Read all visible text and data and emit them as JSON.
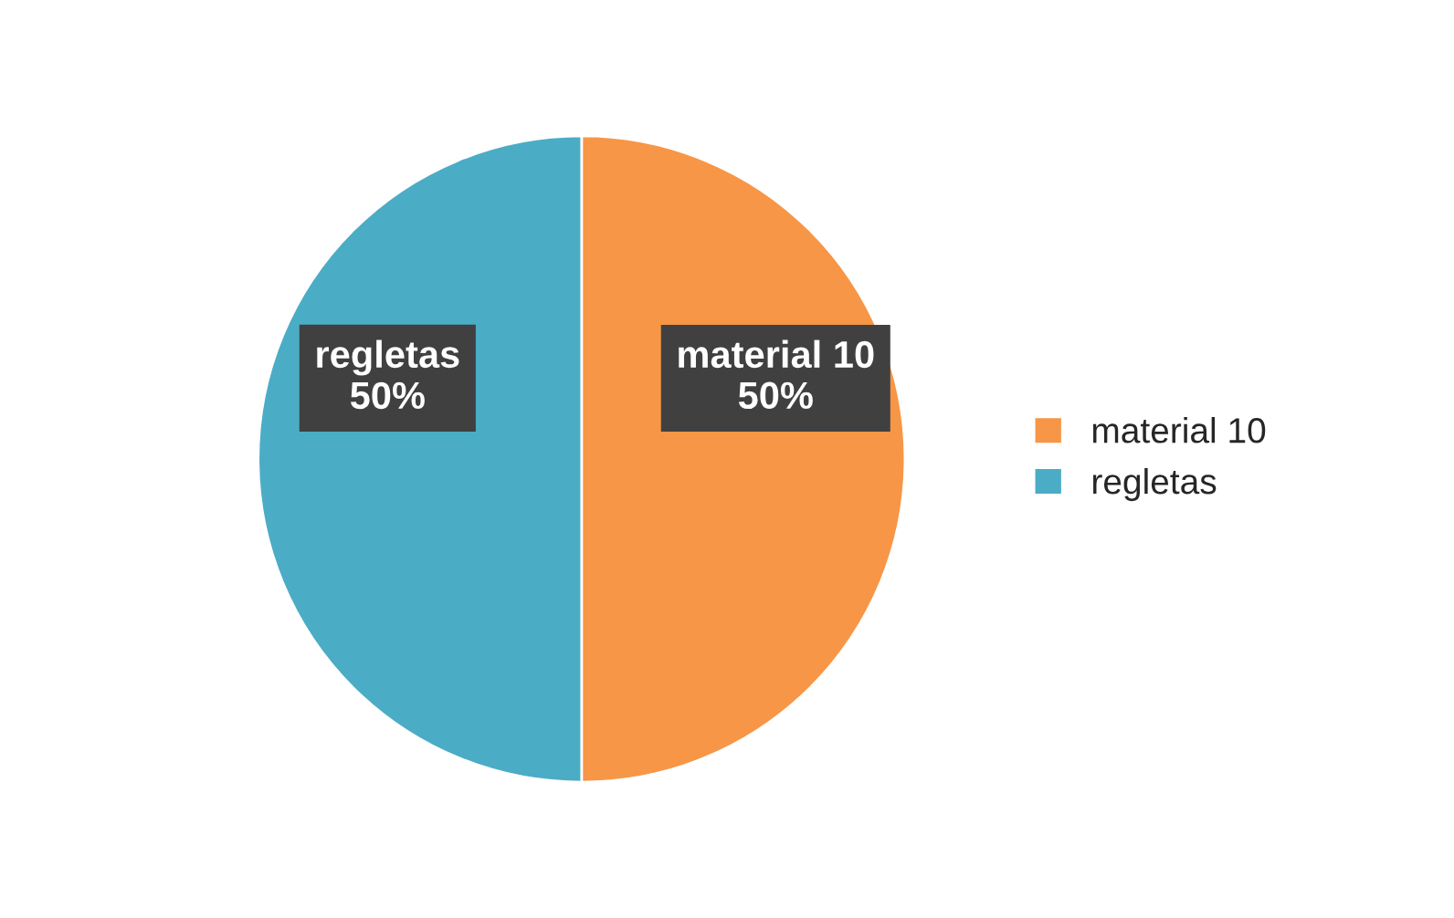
{
  "chart_data": {
    "type": "pie",
    "categories": [
      "material 10",
      "regletas"
    ],
    "values": [
      50,
      50
    ],
    "colors": [
      "#f79646",
      "#4bacc6"
    ],
    "value_labels": [
      "50%",
      "50%"
    ],
    "legend": "right"
  }
}
